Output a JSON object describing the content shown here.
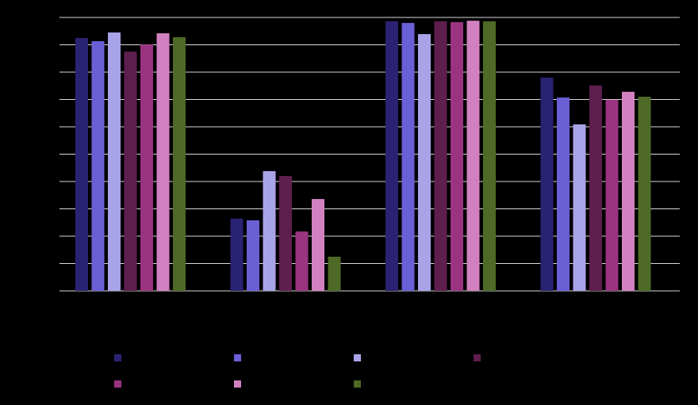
{
  "chart_data": {
    "type": "bar",
    "categories": [
      null,
      null,
      null,
      null
    ],
    "series": [
      {
        "color": "#2a2373",
        "values": [
          92.5,
          26.4,
          98.6,
          78.0
        ]
      },
      {
        "color": "#6a5fd5",
        "values": [
          91.3,
          25.8,
          98.0,
          70.7
        ]
      },
      {
        "color": "#a9a4e8",
        "values": [
          94.5,
          43.8,
          93.9,
          60.9
        ]
      },
      {
        "color": "#5e1f4e",
        "values": [
          87.5,
          42.0,
          98.6,
          75.1
        ]
      },
      {
        "color": "#9b3480",
        "values": [
          90.1,
          21.7,
          98.3,
          69.9
        ]
      },
      {
        "color": "#d281c0",
        "values": [
          94.2,
          33.6,
          98.8,
          72.8
        ]
      },
      {
        "color": "#4e6a26",
        "values": [
          92.8,
          12.5,
          98.6,
          71.0
        ]
      }
    ],
    "ylim": [
      0,
      100
    ],
    "yticks": [
      0,
      10,
      20,
      30,
      40,
      50,
      60,
      70,
      80,
      90,
      100
    ],
    "grid": true
  }
}
